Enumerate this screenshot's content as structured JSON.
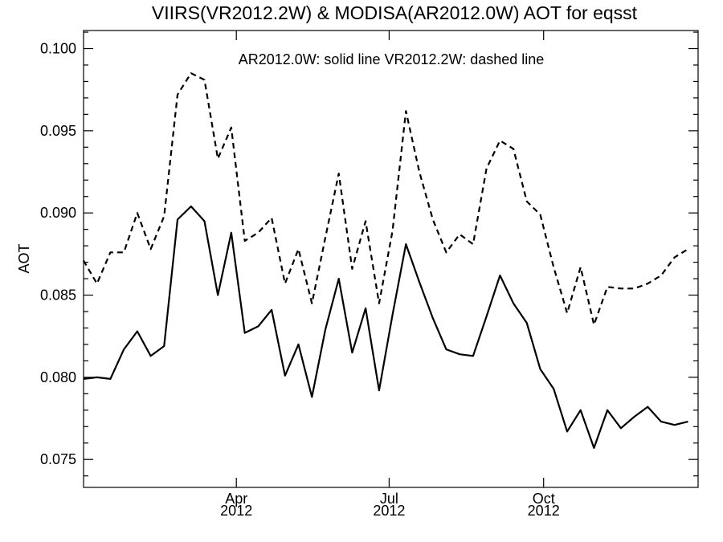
{
  "chart_data": {
    "type": "line",
    "title": "VIIRS(VR2012.2W) & MODISA(AR2012.0W)  AOT for eqsst",
    "annotation": "AR2012.0W: solid line   VR2012.2W: dashed line",
    "ylabel": "AOT",
    "xlabel": "",
    "ylim": [
      0.0733,
      0.1011
    ],
    "xlim": [
      "2012-01-01",
      "2013-01-01"
    ],
    "yticks": [
      "0.075",
      "0.080",
      "0.085",
      "0.090",
      "0.095",
      "0.100"
    ],
    "xticks": [
      {
        "date": "2012-04-01",
        "month": "Apr",
        "year": "2012"
      },
      {
        "date": "2012-07-01",
        "month": "Jul",
        "year": "2012"
      },
      {
        "date": "2012-10-01",
        "month": "Oct",
        "year": "2012"
      }
    ],
    "x": [
      "2012-01-01",
      "2012-01-09",
      "2012-01-17",
      "2012-01-25",
      "2012-02-02",
      "2012-02-10",
      "2012-02-18",
      "2012-02-26",
      "2012-03-05",
      "2012-03-13",
      "2012-03-21",
      "2012-03-29",
      "2012-04-06",
      "2012-04-14",
      "2012-04-22",
      "2012-04-30",
      "2012-05-08",
      "2012-05-16",
      "2012-05-24",
      "2012-06-01",
      "2012-06-09",
      "2012-06-17",
      "2012-06-25",
      "2012-07-03",
      "2012-07-11",
      "2012-07-19",
      "2012-07-27",
      "2012-08-04",
      "2012-08-12",
      "2012-08-20",
      "2012-08-28",
      "2012-09-05",
      "2012-09-13",
      "2012-09-21",
      "2012-09-29",
      "2012-10-07",
      "2012-10-15",
      "2012-10-23",
      "2012-10-31",
      "2012-11-08",
      "2012-11-16",
      "2012-11-24",
      "2012-12-02",
      "2012-12-10",
      "2012-12-18",
      "2012-12-26"
    ],
    "series": [
      {
        "name": "AR2012.0W",
        "style": "solid",
        "values": [
          0.0799,
          0.08,
          0.0799,
          0.0817,
          0.0828,
          0.0813,
          0.0819,
          0.0896,
          0.0904,
          0.0895,
          0.085,
          0.0888,
          0.0827,
          0.0831,
          0.0841,
          0.0801,
          0.082,
          0.0788,
          0.0829,
          0.086,
          0.0815,
          0.0842,
          0.0792,
          0.0838,
          0.0881,
          0.0858,
          0.0836,
          0.0817,
          0.0814,
          0.0813,
          0.0837,
          0.0862,
          0.0845,
          0.0833,
          0.0805,
          0.0793,
          0.0767,
          0.078,
          0.0757,
          0.078,
          0.0769,
          0.0776,
          0.0782,
          0.0773,
          0.0771,
          0.0773
        ]
      },
      {
        "name": "VR2012.2W",
        "style": "dashed",
        "values": [
          0.0871,
          0.0857,
          0.0876,
          0.0876,
          0.09,
          0.0878,
          0.0898,
          0.0972,
          0.0985,
          0.0981,
          0.0933,
          0.0952,
          0.0883,
          0.0888,
          0.0897,
          0.0857,
          0.0878,
          0.0845,
          0.0885,
          0.0924,
          0.0866,
          0.0895,
          0.0845,
          0.0889,
          0.0962,
          0.0925,
          0.0896,
          0.0876,
          0.0887,
          0.0881,
          0.0927,
          0.0944,
          0.0939,
          0.0907,
          0.0899,
          0.0867,
          0.0839,
          0.0867,
          0.0832,
          0.0855,
          0.0854,
          0.0854,
          0.0857,
          0.0862,
          0.0873,
          0.0878
        ]
      }
    ],
    "grid": false,
    "legend": "none"
  }
}
